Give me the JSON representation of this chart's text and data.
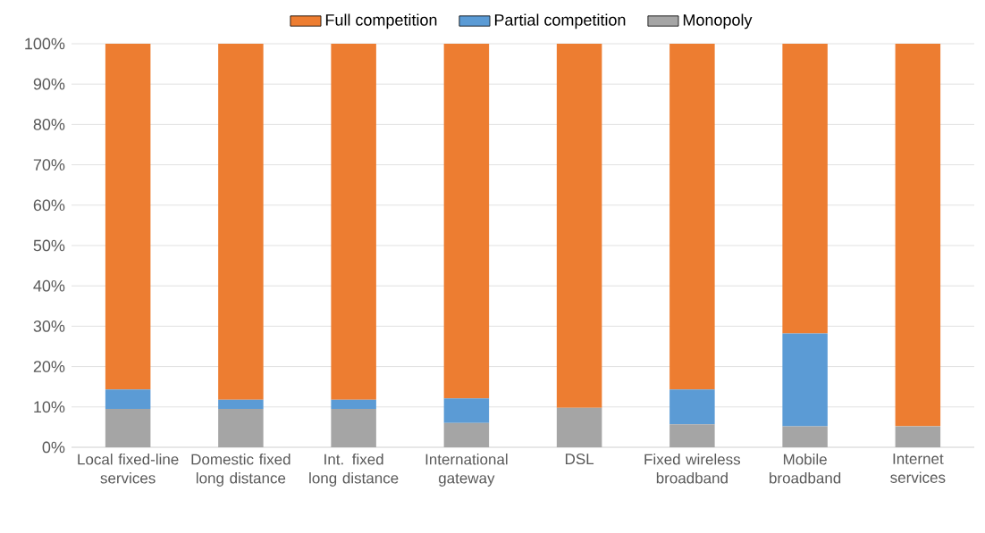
{
  "chart_data": {
    "type": "bar",
    "stacked": true,
    "categories": [
      "Local fixed-line services",
      "Domestic fixed long distance",
      "Int. fixed long distance",
      "International gateway",
      "DSL",
      "Fixed wireless broadband",
      "Mobile broadband",
      "Internet services"
    ],
    "series": [
      {
        "name": "Monopoly",
        "color": "#a5a5a5",
        "values": [
          9.5,
          9.5,
          9.5,
          6.0,
          9.8,
          5.7,
          5.2,
          5.2
        ]
      },
      {
        "name": "Partial competition",
        "color": "#5b9bd5",
        "values": [
          4.8,
          2.3,
          2.3,
          6.1,
          0,
          8.6,
          23.0,
          0
        ]
      },
      {
        "name": "Full competition",
        "color": "#ed7d31",
        "values": [
          85.7,
          88.2,
          88.2,
          87.9,
          90.2,
          85.7,
          71.8,
          94.8
        ]
      }
    ],
    "ylim": [
      0,
      100
    ],
    "yticks": [
      {
        "value": 0,
        "label": "0%"
      },
      {
        "value": 10,
        "label": "10%"
      },
      {
        "value": 20,
        "label": "20%"
      },
      {
        "value": 30,
        "label": "30%"
      },
      {
        "value": 40,
        "label": "40%"
      },
      {
        "value": 50,
        "label": "50%"
      },
      {
        "value": 60,
        "label": "60%"
      },
      {
        "value": 70,
        "label": "70%"
      },
      {
        "value": 80,
        "label": "80%"
      },
      {
        "value": 90,
        "label": "90%"
      },
      {
        "value": 100,
        "label": "100%"
      }
    ],
    "grid": "y",
    "legend": "top"
  }
}
